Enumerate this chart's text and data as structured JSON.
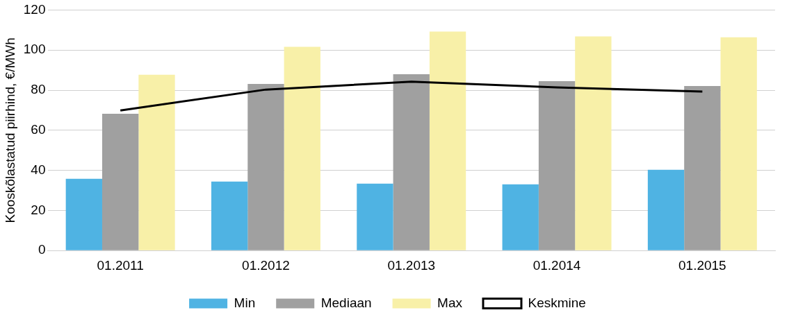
{
  "chart_data": {
    "type": "bar",
    "ylabel": "Kooskõlastatud piirhind, €/MWh",
    "categories": [
      "01.2011",
      "01.2012",
      "01.2013",
      "01.2014",
      "01.2015"
    ],
    "series": [
      {
        "name": "Min",
        "color": "#4fb3e3",
        "values": [
          35.8,
          34.4,
          33.4,
          33.0,
          40.3
        ]
      },
      {
        "name": "Mediaan",
        "color": "#a0a0a0",
        "values": [
          68.2,
          83.1,
          88.0,
          84.5,
          82.1
        ]
      },
      {
        "name": "Max",
        "color": "#f8f0a8",
        "values": [
          87.7,
          101.6,
          109.2,
          106.8,
          106.4
        ]
      },
      {
        "name": "Keskmine",
        "type": "line",
        "color": "#000000",
        "values": [
          69.9,
          80.3,
          84.2,
          81.4,
          79.3
        ]
      }
    ],
    "ylim": [
      0,
      120
    ],
    "yticks": [
      0,
      20,
      40,
      60,
      80,
      100,
      120
    ],
    "grid": "y",
    "legend": "bottom",
    "marker": "none"
  }
}
